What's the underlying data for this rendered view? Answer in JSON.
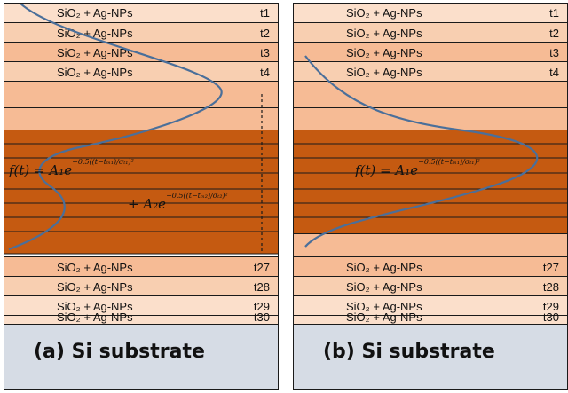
{
  "layer_label": "SiO₂ + Ag-NPs",
  "top_tags": [
    "t1",
    "t2",
    "t3",
    "t4"
  ],
  "bottom_tags": [
    "t27",
    "t28",
    "t29",
    "t30"
  ],
  "panels": [
    {
      "id": "a",
      "substrate": "(a)   Si substrate",
      "formula_line1": "f(t) = A₁e",
      "formula_exp1": "−0.5((t−tₘ₁)/σₜ₁)²",
      "formula_line2": "+ A₂e",
      "formula_exp2": "−0.5((t−tₘ₂)/σₜ₂)²"
    },
    {
      "id": "b",
      "substrate": "(b)   Si substrate",
      "formula_line1": "f(t) = A₁e",
      "formula_exp1": "−0.5((t−tₘ₁)/σₜ₁)²"
    }
  ],
  "colors": {
    "light": "#fbdfcb",
    "mid": "#f6bb95",
    "core": "#c55a11",
    "substrate": "#d6dce5",
    "curve": "#4a6f9a"
  }
}
